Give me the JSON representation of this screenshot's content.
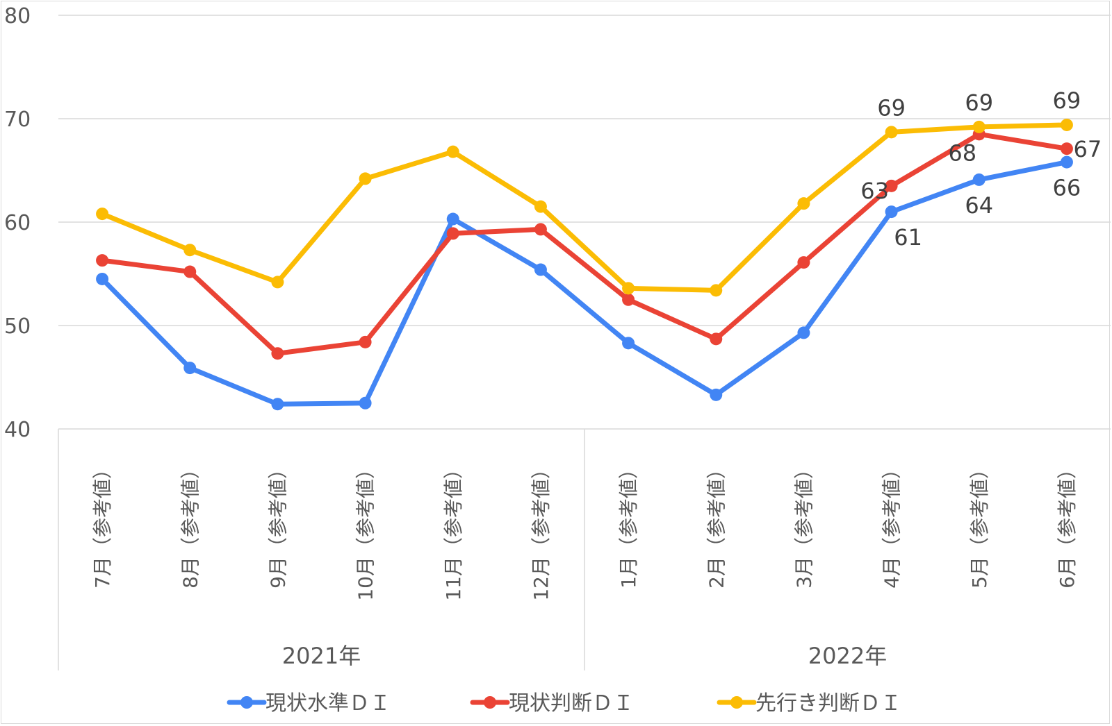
{
  "chart_data": {
    "type": "line",
    "title": "",
    "xlabel": "",
    "ylabel": "",
    "ylim": [
      40,
      80
    ],
    "yticks": [
      "40",
      "50",
      "60",
      "70",
      "80"
    ],
    "grid": true,
    "legend_position": "bottom",
    "categories": [
      "7月（参考値）",
      "8月（参考値）",
      "9月（参考値）",
      "10月（参考値）",
      "11月（参考値）",
      "12月（参考値）",
      "1月（参考値）",
      "2月（参考値）",
      "3月（参考値）",
      "4月（参考値）",
      "5月（参考値）",
      "6月（参考値）"
    ],
    "groups": [
      {
        "label": "2021年",
        "span": 6
      },
      {
        "label": "2022年",
        "span": 6
      }
    ],
    "series": [
      {
        "name": "現状水準ＤＩ",
        "color": "#4285f4",
        "values": [
          54.5,
          45.9,
          42.4,
          42.5,
          60.3,
          55.4,
          48.3,
          43.3,
          49.3,
          61.0,
          64.1,
          65.8
        ],
        "data_labels": [
          "",
          "",
          "",
          "",
          "",
          "",
          "",
          "",
          "",
          "61",
          "64",
          "66"
        ]
      },
      {
        "name": "現状判断ＤＩ",
        "color": "#ea4335",
        "values": [
          56.3,
          55.2,
          47.3,
          48.4,
          58.9,
          59.3,
          52.5,
          48.7,
          56.1,
          63.5,
          68.5,
          67.1
        ],
        "data_labels": [
          "",
          "",
          "",
          "",
          "",
          "",
          "",
          "",
          "",
          "63",
          "68",
          "67"
        ]
      },
      {
        "name": "先行き判断ＤＩ",
        "color": "#fbbc04",
        "values": [
          60.8,
          57.3,
          54.2,
          64.2,
          66.8,
          61.5,
          53.6,
          53.4,
          61.8,
          68.7,
          69.2,
          69.4
        ],
        "data_labels": [
          "",
          "",
          "",
          "",
          "",
          "",
          "",
          "",
          "",
          "69",
          "69",
          "69"
        ]
      }
    ]
  }
}
